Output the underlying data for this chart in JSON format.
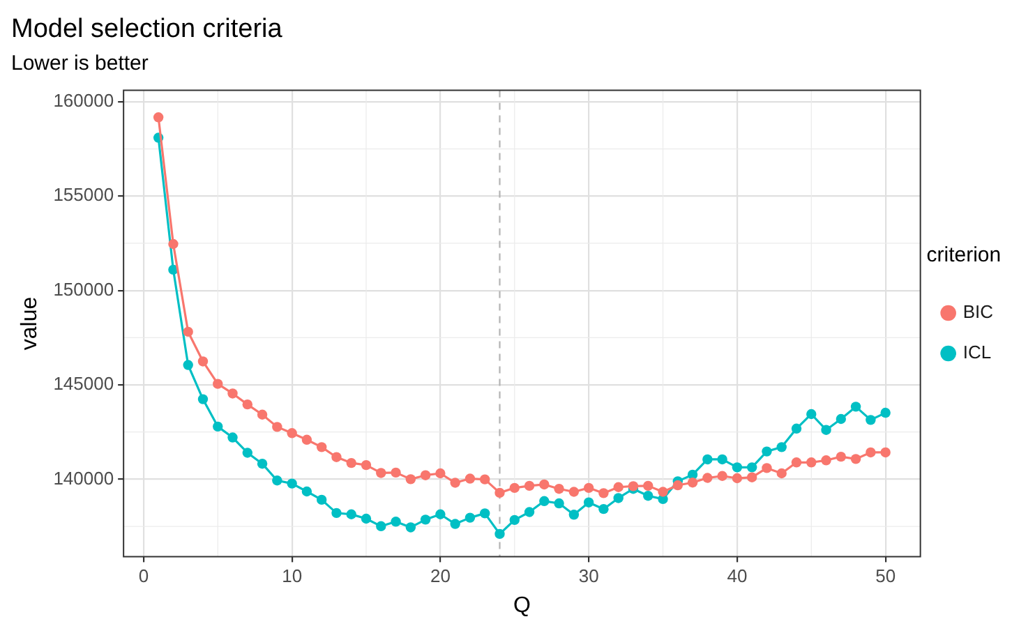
{
  "chart_data": {
    "type": "line",
    "title": "Model selection criteria",
    "subtitle": "Lower is better",
    "xlabel": "Q",
    "ylabel": "value",
    "legend_title": "criterion",
    "x": [
      1,
      2,
      3,
      4,
      5,
      6,
      7,
      8,
      9,
      10,
      11,
      12,
      13,
      14,
      15,
      16,
      17,
      18,
      19,
      20,
      21,
      22,
      23,
      24,
      25,
      26,
      27,
      28,
      29,
      30,
      31,
      32,
      33,
      34,
      35,
      36,
      37,
      38,
      39,
      40,
      41,
      42,
      43,
      44,
      45,
      46,
      47,
      48,
      49,
      50
    ],
    "series": [
      {
        "name": "BIC",
        "color": "#f8766d",
        "values": [
          159170,
          152460,
          147810,
          146240,
          145050,
          144540,
          143960,
          143420,
          142770,
          142440,
          142090,
          141700,
          141170,
          140860,
          140750,
          140330,
          140350,
          140000,
          140210,
          140310,
          139810,
          140030,
          139990,
          139280,
          139540,
          139650,
          139720,
          139490,
          139330,
          139540,
          139260,
          139580,
          139630,
          139650,
          139330,
          139680,
          139820,
          140070,
          140170,
          140050,
          140100,
          140590,
          140310,
          140890,
          140890,
          141000,
          141190,
          141070,
          141420,
          141420
        ]
      },
      {
        "name": "ICL",
        "color": "#00bfc4",
        "values": [
          158090,
          151100,
          146050,
          144240,
          142790,
          142210,
          141400,
          140820,
          139930,
          139770,
          139350,
          138910,
          138210,
          138140,
          137910,
          137510,
          137750,
          137450,
          137860,
          138140,
          137630,
          137960,
          138190,
          137100,
          137840,
          138260,
          138840,
          138720,
          138120,
          138770,
          138420,
          139000,
          139490,
          139120,
          138950,
          139890,
          140240,
          141050,
          141050,
          140630,
          140630,
          141470,
          141700,
          142680,
          143450,
          142610,
          143190,
          143840,
          143140,
          143520
        ]
      }
    ],
    "xlim": [
      -1.35,
      52.35
    ],
    "ylim": [
      135900,
      160600
    ],
    "xticks": [
      0,
      10,
      20,
      30,
      40,
      50
    ],
    "yticks": [
      140000,
      145000,
      150000,
      155000,
      160000
    ],
    "ref_lines": [
      {
        "axis": "x",
        "value": 24,
        "color": "#b3b3b3",
        "line_style": "dashed"
      }
    ],
    "grid": true,
    "legend": "right",
    "marker": "circle",
    "line_style": "solid"
  }
}
